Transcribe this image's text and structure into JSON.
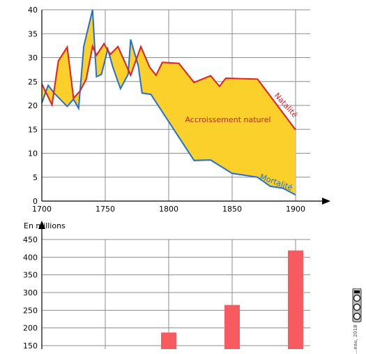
{
  "chart_data": [
    {
      "type": "line",
      "x_ticks": [
        1700,
        1750,
        1800,
        1850,
        1900
      ],
      "y_ticks": [
        0,
        5,
        10,
        15,
        20,
        25,
        30,
        35,
        40
      ],
      "xlim": [
        1700,
        1900
      ],
      "ylim": [
        0,
        40
      ],
      "grid": true,
      "series": [
        {
          "name": "Natalité",
          "color": "#e41c23",
          "points": [
            [
              1700,
              24.5
            ],
            [
              1708,
              20.1
            ],
            [
              1713,
              29.3
            ],
            [
              1720,
              32.2
            ],
            [
              1725,
              21.5
            ],
            [
              1730,
              23
            ],
            [
              1735,
              25.5
            ],
            [
              1740,
              32.4
            ],
            [
              1743,
              30.5
            ],
            [
              1749,
              32.9
            ],
            [
              1752,
              31.5
            ],
            [
              1754,
              30.7
            ],
            [
              1760,
              32.3
            ],
            [
              1770,
              26.3
            ],
            [
              1778,
              32.3
            ],
            [
              1785,
              28
            ],
            [
              1790,
              26.3
            ],
            [
              1795,
              29
            ],
            [
              1808,
              28.8
            ],
            [
              1820,
              24.8
            ],
            [
              1833,
              26.2
            ],
            [
              1840,
              24
            ],
            [
              1845,
              25.7
            ],
            [
              1870,
              25.5
            ],
            [
              1900,
              14.9
            ]
          ]
        },
        {
          "name": "Mortalité",
          "color": "#1e6fd9",
          "points": [
            [
              1700,
              20.5
            ],
            [
              1705,
              24.2
            ],
            [
              1710,
              22.5
            ],
            [
              1720,
              19.8
            ],
            [
              1725,
              21.3
            ],
            [
              1729,
              19.4
            ],
            [
              1733,
              32.3
            ],
            [
              1740,
              40
            ],
            [
              1743,
              26
            ],
            [
              1747,
              26.5
            ],
            [
              1752,
              31.8
            ],
            [
              1756,
              28
            ],
            [
              1762,
              23.5
            ],
            [
              1768,
              26.5
            ],
            [
              1770,
              33.8
            ],
            [
              1776,
              28.3
            ],
            [
              1779,
              22.6
            ],
            [
              1786,
              22.3
            ],
            [
              1820,
              8.5
            ],
            [
              1833,
              8.6
            ],
            [
              1850,
              5.8
            ],
            [
              1870,
              5
            ],
            [
              1880,
              3.1
            ],
            [
              1890,
              2.7
            ],
            [
              1900,
              1.3
            ]
          ]
        }
      ],
      "annotation": "Accroissement naturel",
      "fill_color": "#fcd02a"
    },
    {
      "type": "bar",
      "ylabel": "En millions",
      "y_ticks": [
        150,
        200,
        250,
        300,
        350,
        400,
        450
      ],
      "ylim": [
        150,
        450
      ],
      "x_gridlines": [
        1700,
        1750,
        1800,
        1850,
        1900
      ],
      "grid": true,
      "bar_color": "#f75a5f",
      "bars": [
        {
          "x": 1800,
          "value": 187
        },
        {
          "x": 1850,
          "value": 265
        },
        {
          "x": 1900,
          "value": 419
        }
      ]
    }
  ],
  "credit": "…eau, 2018"
}
